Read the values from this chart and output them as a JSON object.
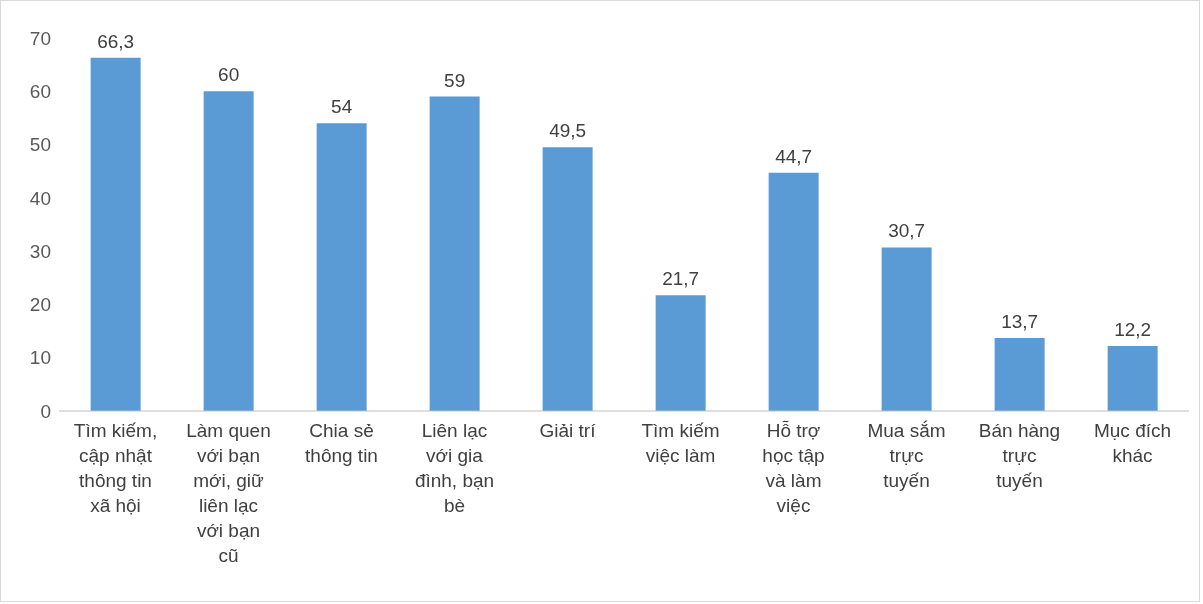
{
  "chart_data": {
    "type": "bar",
    "categories": [
      "Tìm kiếm, cập nhật thông tin xã hội",
      "Làm quen với bạn mới, giữ liên lạc với bạn cũ",
      "Chia sẻ thông tin",
      "Liên lạc với gia đình, bạn bè",
      "Giải trí",
      "Tìm kiếm việc làm",
      "Hỗ trợ học tập và làm việc",
      "Mua sắm trực tuyến",
      "Bán hàng trực tuyến",
      "Mục đích khác"
    ],
    "values": [
      66.3,
      60,
      54,
      59,
      49.5,
      21.7,
      44.7,
      30.7,
      13.7,
      12.2
    ],
    "value_labels": [
      "66,3",
      "60",
      "54",
      "59",
      "49,5",
      "21,7",
      "44,7",
      "30,7",
      "13,7",
      "12,2"
    ],
    "color": "#5b9bd5",
    "ylim": [
      0,
      70
    ],
    "yticks": [
      0,
      10,
      20,
      30,
      40,
      50,
      60,
      70
    ],
    "grid": false
  }
}
